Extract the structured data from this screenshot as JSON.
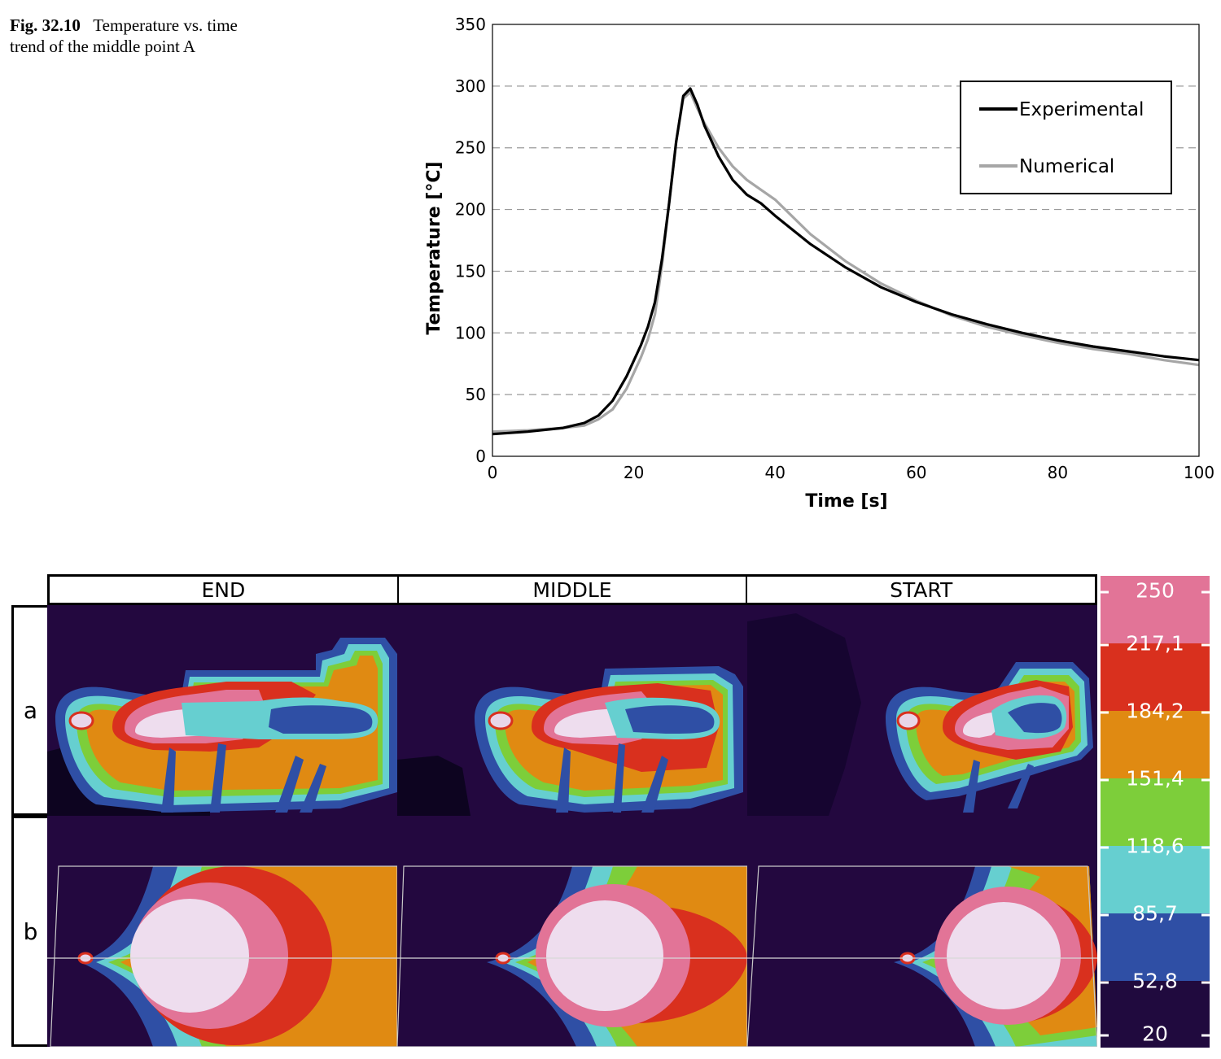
{
  "caption": {
    "label": "Fig. 32.10",
    "text": "Temperature vs. time trend of the middle point A"
  },
  "chart_data": {
    "type": "line",
    "xlabel": "Time [s]",
    "ylabel": "Temperature [°C]",
    "xlim": [
      0,
      100
    ],
    "ylim": [
      0,
      350
    ],
    "xticks": [
      0,
      20,
      40,
      60,
      80,
      100
    ],
    "yticks": [
      0,
      50,
      100,
      150,
      200,
      250,
      300,
      350
    ],
    "grid": "horizontal dashed",
    "legend_position": "top-right",
    "series": [
      {
        "name": "Experimental",
        "color": "#000000",
        "x": [
          0,
          5,
          10,
          13,
          15,
          17,
          19,
          21,
          22,
          23,
          24,
          25,
          26,
          27,
          28,
          29,
          30,
          32,
          34,
          36,
          38,
          40,
          45,
          50,
          55,
          60,
          65,
          70,
          75,
          80,
          85,
          90,
          95,
          100
        ],
        "y": [
          18,
          20,
          23,
          27,
          33,
          45,
          65,
          90,
          105,
          125,
          160,
          205,
          255,
          292,
          298,
          285,
          268,
          243,
          224,
          212,
          205,
          195,
          172,
          153,
          137,
          125,
          115,
          107,
          100,
          94,
          89,
          85,
          81,
          78
        ]
      },
      {
        "name": "Numerical",
        "color": "#a6a6a6",
        "x": [
          0,
          5,
          10,
          13,
          15,
          17,
          19,
          21,
          22,
          23,
          24,
          25,
          26,
          27,
          28,
          29,
          30,
          32,
          34,
          36,
          38,
          40,
          45,
          50,
          55,
          60,
          65,
          70,
          75,
          80,
          85,
          90,
          95,
          100
        ],
        "y": [
          20,
          21,
          23,
          25,
          30,
          38,
          55,
          80,
          95,
          115,
          155,
          205,
          255,
          290,
          295,
          282,
          270,
          250,
          235,
          224,
          216,
          208,
          180,
          158,
          140,
          126,
          114,
          105,
          98,
          92,
          87,
          83,
          78,
          74
        ]
      }
    ]
  },
  "thermal": {
    "columns": [
      "END",
      "MIDDLE",
      "START"
    ],
    "rows": [
      "a",
      "b"
    ],
    "scale": {
      "ticks": [
        "250",
        "217,1",
        "184,2",
        "151,4",
        "118,6",
        "85,7",
        "52,8",
        "20"
      ],
      "colors": [
        "#e27497",
        "#d9301e",
        "#e08a12",
        "#7dce3a",
        "#66cfd0",
        "#2f4fa5",
        "#200a3e"
      ],
      "background_color": "#23083f",
      "core_color": "#eeddee"
    }
  }
}
